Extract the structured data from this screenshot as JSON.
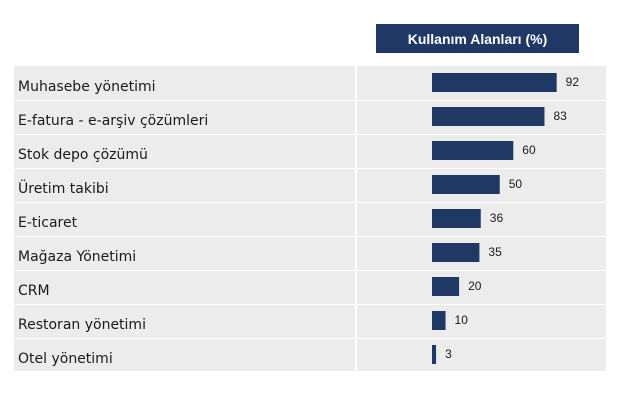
{
  "chart_data": {
    "type": "bar",
    "orientation": "horizontal",
    "title": "Kullanım Alanları (%)",
    "categories": [
      "Muhasebe yönetimi",
      "E-fatura - e-arşiv çözümleri",
      "Stok depo çözümü",
      "Üretim takibi",
      "E-ticaret",
      "Mağaza Yönetimi",
      "CRM",
      "Restoran yönetimi",
      "Otel yönetimi"
    ],
    "values": [
      92,
      83,
      60,
      50,
      36,
      35,
      20,
      10,
      3
    ],
    "bar_color": "#1f3864",
    "grid": false
  }
}
